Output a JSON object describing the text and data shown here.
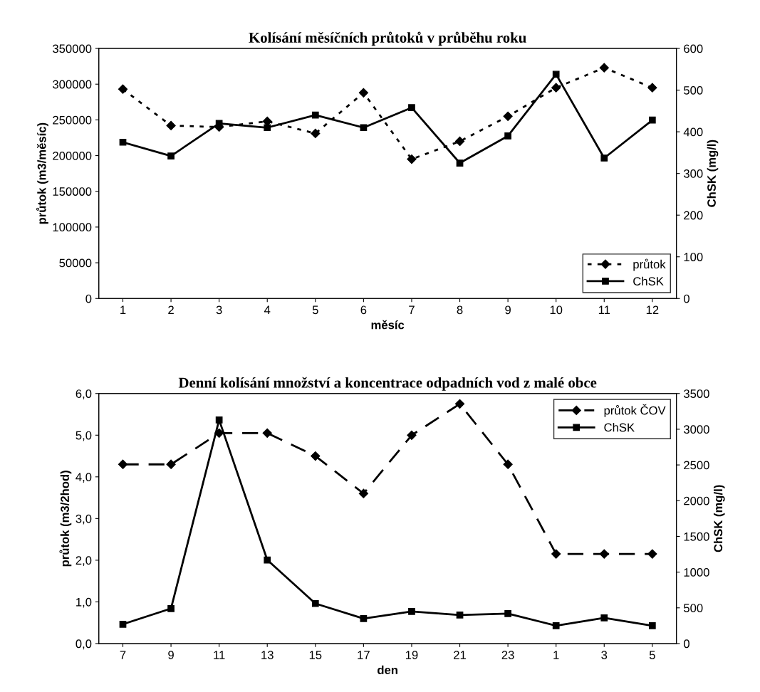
{
  "chart_data": [
    {
      "type": "line",
      "title": "Kolísání měsíčních průtoků v průběhu roku",
      "xlabel": "měsíc",
      "ylabel": "průtok (m3/měsíc)",
      "y2label": "ChSK (mg/l)",
      "categories": [
        "1",
        "2",
        "3",
        "4",
        "5",
        "6",
        "7",
        "8",
        "9",
        "10",
        "11",
        "12"
      ],
      "series": [
        {
          "name": "průtok",
          "color": "#000000",
          "marker": "diamond",
          "line_style": "dotted",
          "values": [
            293000,
            242000,
            240000,
            248000,
            231000,
            288000,
            195000,
            220000,
            255000,
            295000,
            323000,
            295000
          ]
        },
        {
          "name": "ChSK",
          "color": "#000000",
          "marker": "square",
          "line_style": "solid",
          "axis": "y2",
          "values": [
            375,
            342,
            420,
            410,
            440,
            410,
            458,
            325,
            390,
            538,
            337,
            428
          ]
        }
      ],
      "ylim": [
        0,
        350000
      ],
      "yticks": [
        0,
        50000,
        100000,
        150000,
        200000,
        250000,
        300000,
        350000
      ],
      "y2lim": [
        0,
        600
      ],
      "y2ticks": [
        0,
        100,
        200,
        300,
        400,
        500,
        600
      ],
      "legend": "lower right",
      "grid": false
    },
    {
      "type": "line",
      "title": "Denní kolísání množství a koncentrace odpadních vod z malé obce",
      "xlabel": "den",
      "ylabel": "průtok (m3/2hod)",
      "y2label": "ChSK (mg/l)",
      "categories": [
        "7",
        "9",
        "11",
        "13",
        "15",
        "17",
        "19",
        "21",
        "23",
        "1",
        "3",
        "5"
      ],
      "series": [
        {
          "name": "průtok ČOV",
          "color": "#000000",
          "marker": "diamond",
          "line_style": "dashed",
          "values": [
            4.3,
            4.3,
            5.05,
            5.05,
            4.5,
            3.6,
            5.0,
            5.75,
            4.3,
            2.15,
            2.15,
            2.15
          ]
        },
        {
          "name": "ChSK",
          "color": "#000000",
          "marker": "square",
          "line_style": "solid",
          "axis": "y2",
          "values": [
            270,
            490,
            3130,
            1170,
            560,
            350,
            450,
            400,
            420,
            250,
            360,
            250
          ]
        }
      ],
      "ylim": [
        0,
        6
      ],
      "yticks": [
        {
          "value": 0,
          "label": "0,0"
        },
        {
          "value": 1,
          "label": "1,0"
        },
        {
          "value": 2,
          "label": "2,0"
        },
        {
          "value": 3,
          "label": "3,0"
        },
        {
          "value": 4,
          "label": "4,0"
        },
        {
          "value": 5,
          "label": "5,0"
        },
        {
          "value": 6,
          "label": "6,0"
        }
      ],
      "y2lim": [
        0,
        3500
      ],
      "y2ticks": [
        0,
        500,
        1000,
        1500,
        2000,
        2500,
        3000,
        3500
      ],
      "legend": "upper right",
      "grid": false
    }
  ]
}
